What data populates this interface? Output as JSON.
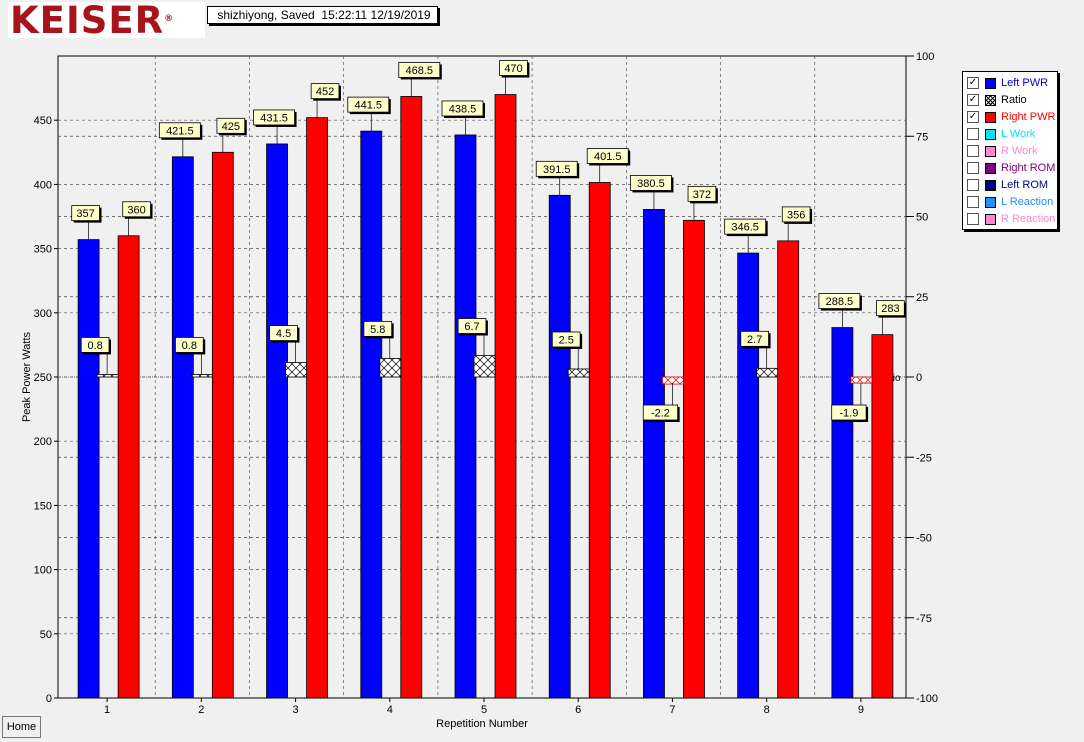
{
  "logo": "KEISER",
  "logo_mark": "®",
  "status_text": " shizhiyong, Saved  15:22:11 12/19/2019",
  "home_label": "Home",
  "legend": [
    {
      "label": "Left PWR",
      "checked": true,
      "color": "#0000ff",
      "text_color": "#0000c8",
      "swatch": "solid"
    },
    {
      "label": "Ratio",
      "checked": true,
      "color": "#ffffff",
      "text_color": "#000000",
      "swatch": "hatch"
    },
    {
      "label": "Right PWR",
      "checked": true,
      "color": "#ff0000",
      "text_color": "#ff0000",
      "swatch": "solid"
    },
    {
      "label": "L Work",
      "checked": false,
      "color": "#00e5ff",
      "text_color": "#00e5ff",
      "swatch": "solid"
    },
    {
      "label": "R Work",
      "checked": false,
      "color": "#ff88cc",
      "text_color": "#ff88cc",
      "swatch": "solid"
    },
    {
      "label": "Right ROM",
      "checked": false,
      "color": "#800080",
      "text_color": "#800080",
      "swatch": "solid"
    },
    {
      "label": "Left ROM",
      "checked": false,
      "color": "#000080",
      "text_color": "#000080",
      "swatch": "solid"
    },
    {
      "label": "L Reaction",
      "checked": false,
      "color": "#1e90ff",
      "text_color": "#1e90ff",
      "swatch": "solid"
    },
    {
      "label": "R Reaction",
      "checked": false,
      "color": "#ff88cc",
      "text_color": "#ff88cc",
      "swatch": "solid"
    }
  ],
  "check_glyph": "✓",
  "chart_data": {
    "type": "bar",
    "xlabel": "Repetition Number",
    "ylabel": "Peak Power Watts",
    "ylim": [
      0,
      500
    ],
    "yticks": [
      0,
      50,
      100,
      150,
      200,
      250,
      300,
      350,
      400,
      450
    ],
    "y2lim": [
      -100,
      100
    ],
    "y2ticks": [
      100,
      75,
      50,
      25,
      0,
      -25,
      -50,
      -75,
      -100
    ],
    "ratio_line_label": "tio",
    "categories": [
      "1",
      "2",
      "3",
      "4",
      "5",
      "6",
      "7",
      "8",
      "9"
    ],
    "series": [
      {
        "name": "Left PWR",
        "color": "#0000ff",
        "axis": "left",
        "values": [
          357,
          421.5,
          431.5,
          441.5,
          438.5,
          391.5,
          380.5,
          346.5,
          288.5
        ],
        "labels": [
          "357",
          "421.5",
          "431.5",
          "441.5",
          "438.5",
          "391.5",
          "380.5",
          "346.5",
          "288.5"
        ]
      },
      {
        "name": "Ratio",
        "color": "hatch",
        "axis": "right",
        "values": [
          0.8,
          0.8,
          4.5,
          5.8,
          6.7,
          2.5,
          -2.2,
          2.7,
          -1.9
        ],
        "labels": [
          "0.8",
          "0.8",
          "4.5",
          "5.8",
          "6.7",
          "2.5",
          "-2.2",
          "2.7",
          "-1.9"
        ]
      },
      {
        "name": "Right PWR",
        "color": "#ff0000",
        "axis": "left",
        "values": [
          360,
          425,
          452,
          468.5,
          470,
          401.5,
          372,
          356,
          283
        ],
        "labels": [
          "360",
          "425",
          "452",
          "468.5",
          "470",
          "401.5",
          "372",
          "356",
          "283"
        ]
      }
    ],
    "grid": true,
    "legend_position": "right"
  }
}
